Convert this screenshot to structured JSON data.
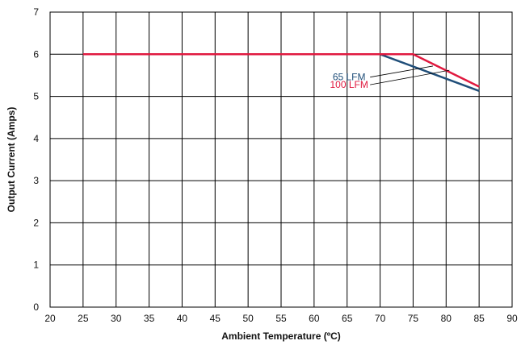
{
  "chart_data": {
    "type": "line",
    "title": "",
    "xlabel": "Ambient Temperature (ºC)",
    "ylabel": "Output Current (Amps)",
    "xlim": [
      20,
      90
    ],
    "ylim": [
      0,
      7
    ],
    "xticks": [
      20,
      25,
      30,
      35,
      40,
      45,
      50,
      55,
      60,
      65,
      70,
      75,
      80,
      85,
      90
    ],
    "yticks": [
      0,
      1,
      2,
      3,
      4,
      5,
      6,
      7
    ],
    "grid": true,
    "legend": "none",
    "series": [
      {
        "name": "65 LFM",
        "color": "#1f4e79",
        "x": [
          25,
          70,
          85
        ],
        "y": [
          6,
          6,
          5.13
        ]
      },
      {
        "name": "100 LFM",
        "color": "#e0193f",
        "x": [
          25,
          75,
          85
        ],
        "y": [
          6,
          6,
          5.23
        ]
      }
    ],
    "annotations": [
      {
        "text": "65 LFM",
        "series": 0,
        "color": "#1f4e79",
        "label_at": [
          65.3,
          5.38
        ],
        "points_to": [
          78,
          5.72
        ]
      },
      {
        "text": "100 LFM",
        "series": 1,
        "color": "#e0193f",
        "label_at": [
          65.3,
          5.2
        ],
        "points_to": [
          80.5,
          5.62
        ]
      }
    ]
  }
}
